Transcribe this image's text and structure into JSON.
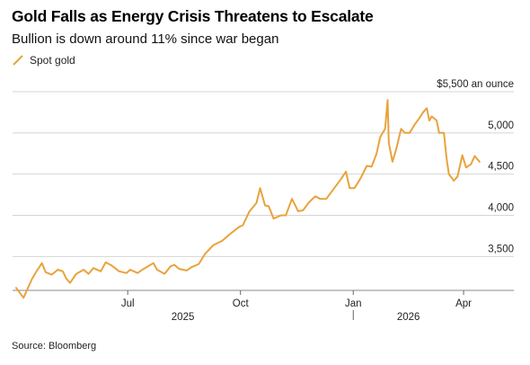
{
  "chart_data": {
    "type": "line",
    "title": "Gold Falls as Energy Crisis Threatens to Escalate",
    "subtitle": "Bullion is down around 11% since war began",
    "series": [
      {
        "name": "Spot gold",
        "color": "#e8a33d",
        "points": [
          [
            "2025-04-01",
            3120
          ],
          [
            "2025-04-07",
            3000
          ],
          [
            "2025-04-14",
            3230
          ],
          [
            "2025-04-18",
            3330
          ],
          [
            "2025-04-22",
            3420
          ],
          [
            "2025-04-25",
            3310
          ],
          [
            "2025-04-30",
            3280
          ],
          [
            "2025-05-05",
            3340
          ],
          [
            "2025-05-09",
            3320
          ],
          [
            "2025-05-12",
            3230
          ],
          [
            "2025-05-15",
            3180
          ],
          [
            "2025-05-20",
            3290
          ],
          [
            "2025-05-26",
            3340
          ],
          [
            "2025-05-30",
            3290
          ],
          [
            "2025-06-03",
            3360
          ],
          [
            "2025-06-09",
            3320
          ],
          [
            "2025-06-13",
            3430
          ],
          [
            "2025-06-18",
            3390
          ],
          [
            "2025-06-24",
            3320
          ],
          [
            "2025-06-30",
            3300
          ],
          [
            "2025-07-03",
            3340
          ],
          [
            "2025-07-09",
            3300
          ],
          [
            "2025-07-14",
            3350
          ],
          [
            "2025-07-22",
            3420
          ],
          [
            "2025-07-25",
            3340
          ],
          [
            "2025-07-31",
            3290
          ],
          [
            "2025-08-05",
            3380
          ],
          [
            "2025-08-08",
            3400
          ],
          [
            "2025-08-12",
            3350
          ],
          [
            "2025-08-18",
            3330
          ],
          [
            "2025-08-22",
            3370
          ],
          [
            "2025-08-28",
            3410
          ],
          [
            "2025-09-02",
            3530
          ],
          [
            "2025-09-09",
            3640
          ],
          [
            "2025-09-16",
            3690
          ],
          [
            "2025-09-23",
            3780
          ],
          [
            "2025-09-30",
            3860
          ],
          [
            "2025-10-03",
            3880
          ],
          [
            "2025-10-08",
            4040
          ],
          [
            "2025-10-14",
            4150
          ],
          [
            "2025-10-17",
            4330
          ],
          [
            "2025-10-21",
            4120
          ],
          [
            "2025-10-24",
            4110
          ],
          [
            "2025-10-28",
            3960
          ],
          [
            "2025-11-03",
            4000
          ],
          [
            "2025-11-07",
            4000
          ],
          [
            "2025-11-12",
            4200
          ],
          [
            "2025-11-17",
            4050
          ],
          [
            "2025-11-21",
            4060
          ],
          [
            "2025-11-26",
            4160
          ],
          [
            "2025-12-01",
            4230
          ],
          [
            "2025-12-05",
            4200
          ],
          [
            "2025-12-10",
            4200
          ],
          [
            "2025-12-16",
            4320
          ],
          [
            "2025-12-22",
            4440
          ],
          [
            "2025-12-26",
            4530
          ],
          [
            "2025-12-29",
            4330
          ],
          [
            "2026-01-02",
            4330
          ],
          [
            "2026-01-07",
            4450
          ],
          [
            "2026-01-12",
            4600
          ],
          [
            "2026-01-16",
            4590
          ],
          [
            "2026-01-20",
            4750
          ],
          [
            "2026-01-23",
            4950
          ],
          [
            "2026-01-27",
            5050
          ],
          [
            "2026-01-29",
            5400
          ],
          [
            "2026-01-30",
            4880
          ],
          [
            "2026-02-02",
            4650
          ],
          [
            "2026-02-05",
            4800
          ],
          [
            "2026-02-09",
            5050
          ],
          [
            "2026-02-12",
            5000
          ],
          [
            "2026-02-16",
            5000
          ],
          [
            "2026-02-20",
            5100
          ],
          [
            "2026-02-24",
            5180
          ],
          [
            "2026-02-27",
            5250
          ],
          [
            "2026-03-02",
            5300
          ],
          [
            "2026-03-04",
            5150
          ],
          [
            "2026-03-06",
            5200
          ],
          [
            "2026-03-10",
            5150
          ],
          [
            "2026-03-12",
            5000
          ],
          [
            "2026-03-16",
            5000
          ],
          [
            "2026-03-18",
            4700
          ],
          [
            "2026-03-20",
            4500
          ],
          [
            "2026-03-24",
            4420
          ],
          [
            "2026-03-27",
            4470
          ],
          [
            "2026-03-31",
            4730
          ],
          [
            "2026-04-03",
            4580
          ],
          [
            "2026-04-07",
            4620
          ],
          [
            "2026-04-10",
            4720
          ],
          [
            "2026-04-14",
            4650
          ]
        ]
      }
    ],
    "y_axis": {
      "range": [
        3100,
        5500
      ],
      "ticks": [
        {
          "value": 3500,
          "label": "3,500"
        },
        {
          "value": 4000,
          "label": "4,000"
        },
        {
          "value": 4500,
          "label": "4,500"
        },
        {
          "value": 5000,
          "label": "5,000"
        },
        {
          "value": 5500,
          "label": "$5,500 an ounce"
        }
      ],
      "position": "right",
      "grid": true
    },
    "x_axis": {
      "range": [
        "2025-04-01",
        "2026-04-20"
      ],
      "ticks": [
        {
          "date": "2025-07-01",
          "label": "Jul"
        },
        {
          "date": "2025-10-01",
          "label": "Oct"
        },
        {
          "date": "2026-01-01",
          "label": "Jan"
        },
        {
          "date": "2026-04-01",
          "label": "Apr"
        }
      ],
      "year_labels": [
        {
          "date": "2025-08-15",
          "label": "2025"
        },
        {
          "date": "2026-02-15",
          "label": "2026"
        }
      ],
      "year_divider": "2026-01-01"
    },
    "legend": {
      "position": "top-left"
    },
    "source": "Source: Bloomberg"
  }
}
